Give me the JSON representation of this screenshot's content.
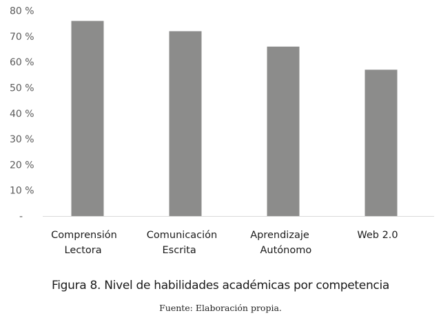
{
  "chart_data": {
    "type": "bar",
    "categories": [
      [
        "Comprensión",
        "Lectora"
      ],
      [
        "Comunicación",
        "Escrita"
      ],
      [
        "Aprendizaje",
        "Autónomo"
      ],
      [
        "Web 2.0"
      ]
    ],
    "values": [
      76,
      72,
      66,
      57
    ],
    "ylim": [
      0,
      80
    ],
    "yticks": [
      "-",
      "10 %",
      "20 %",
      "30 %",
      "40 %",
      "50 %",
      "60 %",
      "70 %",
      "80 %"
    ],
    "grid": false,
    "bar_color": "#8c8c8b",
    "title": "Figura 8. Nivel de habilidades académicas por competencia",
    "source": "Fuente: Elaboración propia."
  }
}
